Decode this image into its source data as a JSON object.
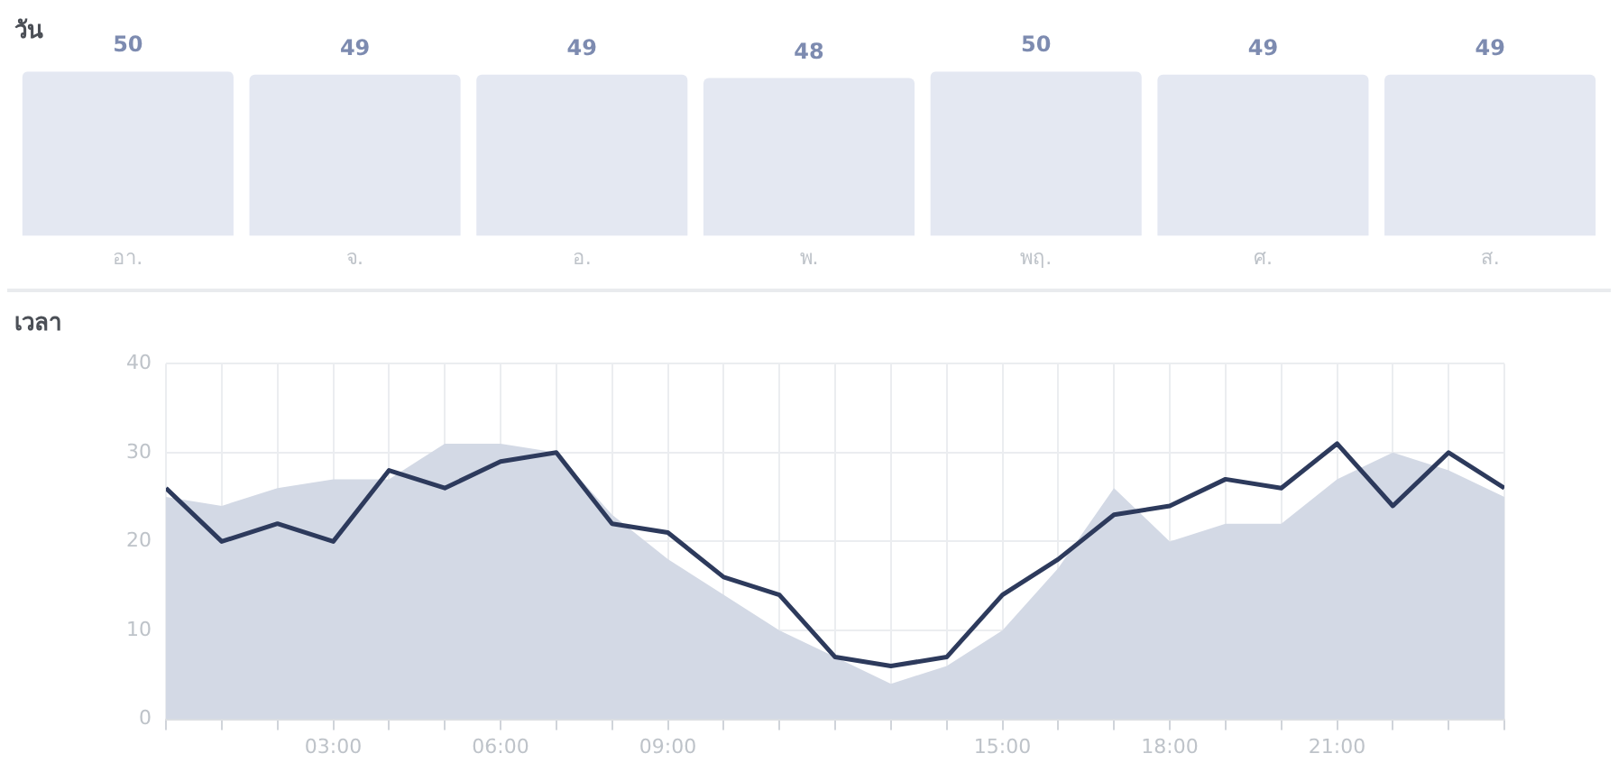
{
  "chart_data": [
    {
      "type": "bar",
      "title": "วัน",
      "categories": [
        "อา.",
        "จ.",
        "อ.",
        "พ.",
        "พฤ.",
        "ศ.",
        "ส."
      ],
      "values": [
        50,
        49,
        49,
        48,
        50,
        49,
        49
      ],
      "color": "#e4e8f2",
      "data_labels": true,
      "tick_labels": "x",
      "grid": false,
      "legend": false
    },
    {
      "type": "line",
      "title": "เวลา",
      "x": [
        0,
        1,
        2,
        3,
        4,
        5,
        6,
        7,
        8,
        9,
        10,
        11,
        12,
        13,
        14,
        15,
        16,
        17,
        18,
        19,
        20,
        21,
        22,
        23,
        24
      ],
      "series": [
        {
          "type": "area",
          "color": "#d3d9e5",
          "values": [
            25,
            24,
            26,
            27,
            27,
            31,
            31,
            30,
            23,
            18,
            14,
            10,
            7,
            4,
            6,
            10,
            17,
            26,
            20,
            22,
            22,
            27,
            30,
            28,
            25
          ]
        },
        {
          "type": "line",
          "color": "#2d3a5c",
          "values": [
            26,
            20,
            22,
            20,
            28,
            26,
            29,
            30,
            22,
            21,
            16,
            14,
            7,
            6,
            7,
            14,
            18,
            23,
            24,
            27,
            26,
            31,
            24,
            30,
            26
          ]
        }
      ],
      "xlim": [
        0,
        24
      ],
      "xticks": [
        {
          "value": 0,
          "label": null
        },
        {
          "value": 1,
          "label": null
        },
        {
          "value": 2,
          "label": null
        },
        {
          "value": 3,
          "label": "03:00"
        },
        {
          "value": 4,
          "label": null
        },
        {
          "value": 5,
          "label": null
        },
        {
          "value": 6,
          "label": "06:00"
        },
        {
          "value": 7,
          "label": null
        },
        {
          "value": 8,
          "label": null
        },
        {
          "value": 9,
          "label": "09:00"
        },
        {
          "value": 10,
          "label": null
        },
        {
          "value": 11,
          "label": null
        },
        {
          "value": 12,
          "label": null
        },
        {
          "value": 13,
          "label": null
        },
        {
          "value": 14,
          "label": null
        },
        {
          "value": 15,
          "label": "15:00"
        },
        {
          "value": 16,
          "label": null
        },
        {
          "value": 17,
          "label": null
        },
        {
          "value": 18,
          "label": "18:00"
        },
        {
          "value": 19,
          "label": null
        },
        {
          "value": 20,
          "label": null
        },
        {
          "value": 21,
          "label": "21:00"
        },
        {
          "value": 22,
          "label": null
        },
        {
          "value": 23,
          "label": null
        },
        {
          "value": 24,
          "label": null
        }
      ],
      "ylim": [
        0,
        40
      ],
      "yticks": [
        0,
        10,
        20,
        30,
        40
      ],
      "grid": true,
      "legend": false,
      "marker": "none",
      "line_style": "solid"
    }
  ]
}
